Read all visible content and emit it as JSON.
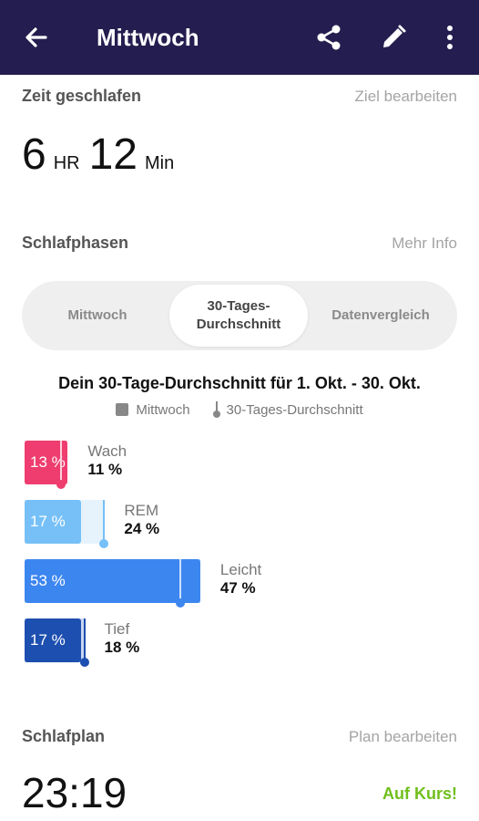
{
  "appbar": {
    "title": "Mittwoch",
    "back_icon": "arrow-left-icon",
    "share_icon": "share-icon",
    "edit_icon": "pencil-icon",
    "more_icon": "more-vert-icon",
    "background": "#241d4f"
  },
  "sleep": {
    "label": "Zeit geschlafen",
    "edit_goal": "Ziel bearbeiten",
    "hours": "6",
    "hours_unit": "HR",
    "minutes": "12",
    "minutes_unit": "Min"
  },
  "phases": {
    "label": "Schlafphasen",
    "more_info": "Mehr Info",
    "tabs": [
      {
        "label": "Mittwoch",
        "active": false
      },
      {
        "label": "30-Tages-\nDurchschnitt",
        "active": true
      },
      {
        "label": "Datenvergleich",
        "active": false
      }
    ],
    "avg_title": "Dein 30-Tage-Durchschnitt für 1. Okt. - 30. Okt.",
    "legend_day": "Mittwoch",
    "legend_avg": "30-Tages-Durchschnitt",
    "stages": [
      {
        "name": "Wach",
        "day_pct": 13,
        "day_label": "13 %",
        "avg_pct": 11,
        "avg_label": "11 %",
        "color": "#ee3d6e",
        "light": "#fbd0dc"
      },
      {
        "name": "REM",
        "day_pct": 17,
        "day_label": "17 %",
        "avg_pct": 24,
        "avg_label": "24 %",
        "color": "#76c0f7",
        "light": "#e6f3fd"
      },
      {
        "name": "Leicht",
        "day_pct": 53,
        "day_label": "53 %",
        "avg_pct": 47,
        "avg_label": "47 %",
        "color": "#3c86f0",
        "light": "#cfe1fb"
      },
      {
        "name": "Tief",
        "day_pct": 17,
        "day_label": "17 %",
        "avg_pct": 18,
        "avg_label": "18 %",
        "color": "#1d4fb0",
        "light": "#c9d6ef"
      }
    ]
  },
  "plan": {
    "label": "Schlafplan",
    "edit": "Plan bearbeiten",
    "time": "23:19",
    "status": "Auf Kurs!",
    "status_color": "#6fbf1a"
  }
}
